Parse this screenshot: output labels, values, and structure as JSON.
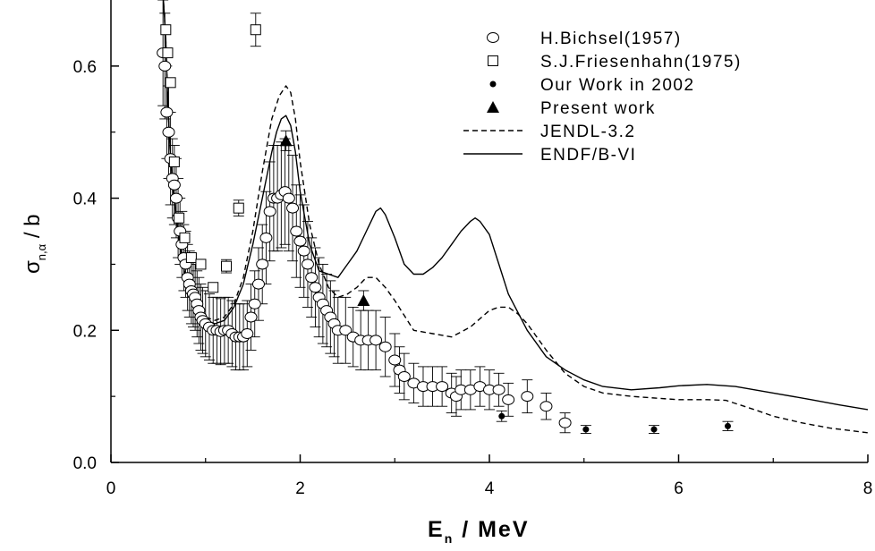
{
  "chart_data": {
    "type": "scatter",
    "title": "",
    "xlabel": {
      "main": "E",
      "sub": "n",
      "rest": " / MeV"
    },
    "ylabel": {
      "main": "σ",
      "sub": "n,α",
      "rest": " / b"
    },
    "xlim": [
      0,
      8
    ],
    "ylim": [
      0,
      0.7
    ],
    "x_ticks": [
      0,
      2,
      4,
      6,
      8
    ],
    "x_tick_labels": [
      "0",
      "2",
      "4",
      "6",
      "8"
    ],
    "y_ticks": [
      0,
      0.2,
      0.4,
      0.6
    ],
    "y_tick_labels": [
      "0.0",
      "0.2",
      "0.4",
      "0.6"
    ],
    "grid": false,
    "legend_position": "top-right",
    "series": [
      {
        "name": "H.Bichsel(1957)",
        "marker": "open-circle",
        "x": [
          0.55,
          0.57,
          0.59,
          0.61,
          0.63,
          0.65,
          0.67,
          0.69,
          0.71,
          0.73,
          0.75,
          0.77,
          0.79,
          0.81,
          0.83,
          0.85,
          0.87,
          0.89,
          0.91,
          0.93,
          0.95,
          0.97,
          1.0,
          1.04,
          1.08,
          1.12,
          1.16,
          1.2,
          1.24,
          1.28,
          1.32,
          1.36,
          1.4,
          1.44,
          1.48,
          1.52,
          1.56,
          1.6,
          1.64,
          1.68,
          1.72,
          1.76,
          1.8,
          1.84,
          1.88,
          1.92,
          1.96,
          2.0,
          2.04,
          2.08,
          2.12,
          2.16,
          2.2,
          2.24,
          2.28,
          2.32,
          2.36,
          2.4,
          2.48,
          2.56,
          2.64,
          2.72,
          2.8,
          2.9,
          3.0,
          3.05,
          3.1,
          3.2,
          3.3,
          3.4,
          3.5,
          3.6,
          3.65,
          3.7,
          3.8,
          3.9,
          4.0,
          4.1,
          4.2,
          4.4,
          4.6,
          4.8
        ],
        "y": [
          0.62,
          0.6,
          0.53,
          0.5,
          0.46,
          0.43,
          0.42,
          0.4,
          0.37,
          0.35,
          0.33,
          0.31,
          0.3,
          0.28,
          0.27,
          0.26,
          0.255,
          0.25,
          0.24,
          0.23,
          0.22,
          0.215,
          0.21,
          0.205,
          0.2,
          0.2,
          0.198,
          0.2,
          0.2,
          0.195,
          0.19,
          0.19,
          0.19,
          0.195,
          0.22,
          0.24,
          0.27,
          0.3,
          0.34,
          0.38,
          0.4,
          0.4,
          0.405,
          0.41,
          0.4,
          0.385,
          0.35,
          0.335,
          0.32,
          0.3,
          0.28,
          0.265,
          0.25,
          0.24,
          0.23,
          0.22,
          0.21,
          0.2,
          0.2,
          0.19,
          0.185,
          0.185,
          0.185,
          0.175,
          0.155,
          0.14,
          0.13,
          0.12,
          0.115,
          0.115,
          0.115,
          0.105,
          0.1,
          0.11,
          0.11,
          0.115,
          0.11,
          0.11,
          0.095,
          0.1,
          0.085,
          0.06
        ],
        "err": [
          0.08,
          0.08,
          0.07,
          0.07,
          0.07,
          0.06,
          0.06,
          0.06,
          0.06,
          0.05,
          0.05,
          0.05,
          0.05,
          0.05,
          0.05,
          0.05,
          0.05,
          0.05,
          0.05,
          0.05,
          0.05,
          0.05,
          0.05,
          0.05,
          0.05,
          0.05,
          0.05,
          0.05,
          0.05,
          0.05,
          0.05,
          0.05,
          0.05,
          0.05,
          0.05,
          0.05,
          0.055,
          0.06,
          0.07,
          0.075,
          0.08,
          0.08,
          0.08,
          0.08,
          0.08,
          0.08,
          0.07,
          0.07,
          0.07,
          0.065,
          0.06,
          0.06,
          0.06,
          0.06,
          0.055,
          0.055,
          0.05,
          0.05,
          0.05,
          0.045,
          0.045,
          0.045,
          0.045,
          0.045,
          0.04,
          0.035,
          0.035,
          0.03,
          0.03,
          0.03,
          0.03,
          0.03,
          0.03,
          0.03,
          0.03,
          0.03,
          0.03,
          0.025,
          0.025,
          0.025,
          0.02,
          0.015
        ]
      },
      {
        "name": "S.J.Friesenhahn(1975)",
        "marker": "open-square",
        "x": [
          0.58,
          0.6,
          0.63,
          0.67,
          0.72,
          0.78,
          0.85,
          0.95,
          1.08,
          1.22,
          1.35,
          1.53
        ],
        "y": [
          0.655,
          0.62,
          0.575,
          0.455,
          0.37,
          0.34,
          0.31,
          0.3,
          0.265,
          0.297,
          0.385,
          0.655
        ],
        "err": [
          0,
          0,
          0,
          0,
          0,
          0,
          0,
          0,
          0,
          0.01,
          0.012,
          0.025
        ]
      },
      {
        "name": "Our Work in 2002",
        "marker": "filled-dot",
        "x": [
          4.13,
          5.02,
          5.74,
          6.52
        ],
        "y": [
          0.07,
          0.05,
          0.05,
          0.055
        ],
        "err": [
          0.008,
          0.006,
          0.006,
          0.007
        ]
      },
      {
        "name": "Present work",
        "marker": "filled-triangle",
        "x": [
          1.85,
          2.67
        ],
        "y": [
          0.487,
          0.245
        ],
        "err": [
          0.015,
          0.015
        ]
      },
      {
        "name": "JENDL-3.2",
        "line": "dashed",
        "x": [
          0.55,
          0.58,
          0.6,
          0.63,
          0.66,
          0.7,
          0.75,
          0.8,
          0.9,
          1.0,
          1.1,
          1.2,
          1.3,
          1.4,
          1.5,
          1.6,
          1.7,
          1.78,
          1.85,
          1.9,
          1.95,
          2.0,
          2.1,
          2.2,
          2.3,
          2.4,
          2.5,
          2.6,
          2.7,
          2.8,
          2.9,
          3.0,
          3.2,
          3.4,
          3.6,
          3.8,
          4.0,
          4.1,
          4.2,
          4.3,
          4.4,
          4.6,
          4.8,
          5.0,
          5.2,
          5.5,
          5.8,
          6.0,
          6.3,
          6.5,
          6.8,
          7.0,
          7.3,
          7.6,
          8.0
        ],
        "y": [
          0.71,
          0.64,
          0.55,
          0.46,
          0.41,
          0.36,
          0.31,
          0.27,
          0.235,
          0.22,
          0.215,
          0.22,
          0.24,
          0.28,
          0.35,
          0.44,
          0.52,
          0.555,
          0.57,
          0.56,
          0.52,
          0.455,
          0.36,
          0.3,
          0.265,
          0.25,
          0.255,
          0.265,
          0.28,
          0.28,
          0.265,
          0.245,
          0.2,
          0.195,
          0.19,
          0.205,
          0.23,
          0.235,
          0.235,
          0.225,
          0.21,
          0.17,
          0.135,
          0.115,
          0.105,
          0.1,
          0.097,
          0.095,
          0.095,
          0.094,
          0.08,
          0.07,
          0.06,
          0.052,
          0.045
        ]
      },
      {
        "name": "ENDF/B-VI",
        "line": "solid",
        "x": [
          0.55,
          0.58,
          0.6,
          0.63,
          0.66,
          0.7,
          0.75,
          0.8,
          0.9,
          1.0,
          1.1,
          1.2,
          1.3,
          1.4,
          1.5,
          1.6,
          1.7,
          1.75,
          1.8,
          1.85,
          1.9,
          1.95,
          2.0,
          2.1,
          2.2,
          2.3,
          2.4,
          2.5,
          2.6,
          2.7,
          2.8,
          2.85,
          2.9,
          3.0,
          3.1,
          3.2,
          3.3,
          3.4,
          3.5,
          3.6,
          3.7,
          3.8,
          3.85,
          3.9,
          4.0,
          4.1,
          4.2,
          4.4,
          4.6,
          4.8,
          5.0,
          5.2,
          5.5,
          5.8,
          6.0,
          6.3,
          6.6,
          7.0,
          7.4,
          7.7,
          8.0
        ],
        "y": [
          0.71,
          0.64,
          0.55,
          0.46,
          0.41,
          0.36,
          0.31,
          0.27,
          0.23,
          0.215,
          0.21,
          0.215,
          0.235,
          0.27,
          0.33,
          0.4,
          0.47,
          0.5,
          0.52,
          0.525,
          0.51,
          0.47,
          0.41,
          0.33,
          0.29,
          0.285,
          0.28,
          0.3,
          0.32,
          0.35,
          0.38,
          0.385,
          0.375,
          0.34,
          0.3,
          0.285,
          0.285,
          0.295,
          0.31,
          0.33,
          0.35,
          0.365,
          0.37,
          0.365,
          0.345,
          0.3,
          0.255,
          0.2,
          0.16,
          0.14,
          0.125,
          0.115,
          0.11,
          0.113,
          0.116,
          0.118,
          0.115,
          0.105,
          0.095,
          0.087,
          0.08
        ]
      }
    ]
  }
}
